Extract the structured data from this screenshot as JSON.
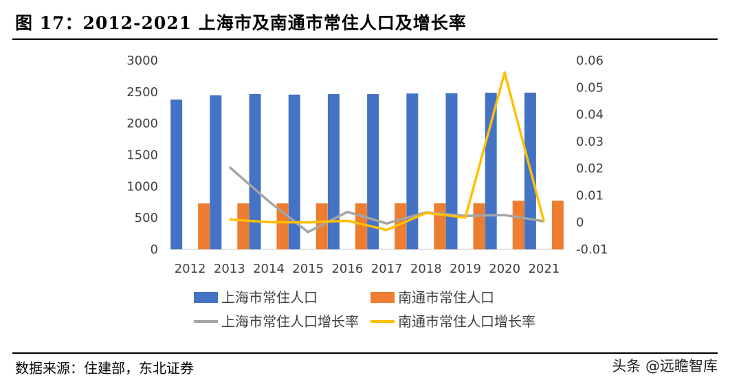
{
  "header": {
    "title": "图 17：2012-2021 上海市及南通市常住人口及增长率"
  },
  "footer": {
    "source": "数据来源：住建部，东北证券",
    "watermark": "头条 @远瞻智库"
  },
  "chart_data": {
    "type": "bar",
    "categories": [
      "2012",
      "2013",
      "2014",
      "2015",
      "2016",
      "2017",
      "2018",
      "2019",
      "2020",
      "2021"
    ],
    "series": [
      {
        "name": "上海市常住人口",
        "type": "bar",
        "axis": "left",
        "color": "#4472C4",
        "values": [
          2380,
          2448,
          2467,
          2457,
          2467,
          2466,
          2475,
          2481,
          2488,
          2489
        ]
      },
      {
        "name": "南通市常住人口",
        "type": "bar",
        "axis": "left",
        "color": "#ED7D31",
        "values": [
          729,
          730,
          730,
          730,
          730,
          731,
          731,
          731,
          773,
          773
        ]
      },
      {
        "name": "上海市常住人口增长率",
        "type": "line",
        "axis": "right",
        "color": "#A5A5A5",
        "values": [
          null,
          0.0205,
          0.0078,
          -0.0036,
          0.0039,
          -0.0004,
          0.0037,
          0.0024,
          0.0027,
          0.0004
        ]
      },
      {
        "name": "南通市常住人口增长率",
        "type": "line",
        "axis": "right",
        "color": "#FFC000",
        "values": [
          null,
          0.0011,
          0.0001,
          0.0,
          0.0006,
          -0.0028,
          0.0035,
          0.0018,
          0.0555,
          0.0003
        ]
      }
    ],
    "y_left": {
      "min": 0,
      "max": 3000,
      "ticks": [
        "3000",
        "2500",
        "2000",
        "1500",
        "1000",
        "500",
        "0"
      ]
    },
    "y_right": {
      "min": -0.01,
      "max": 0.06,
      "ticks": [
        "0.06",
        "0.05",
        "0.04",
        "0.03",
        "0.02",
        "0.01",
        "0",
        "-0.01"
      ]
    },
    "grid": false,
    "legend_position": "bottom"
  }
}
